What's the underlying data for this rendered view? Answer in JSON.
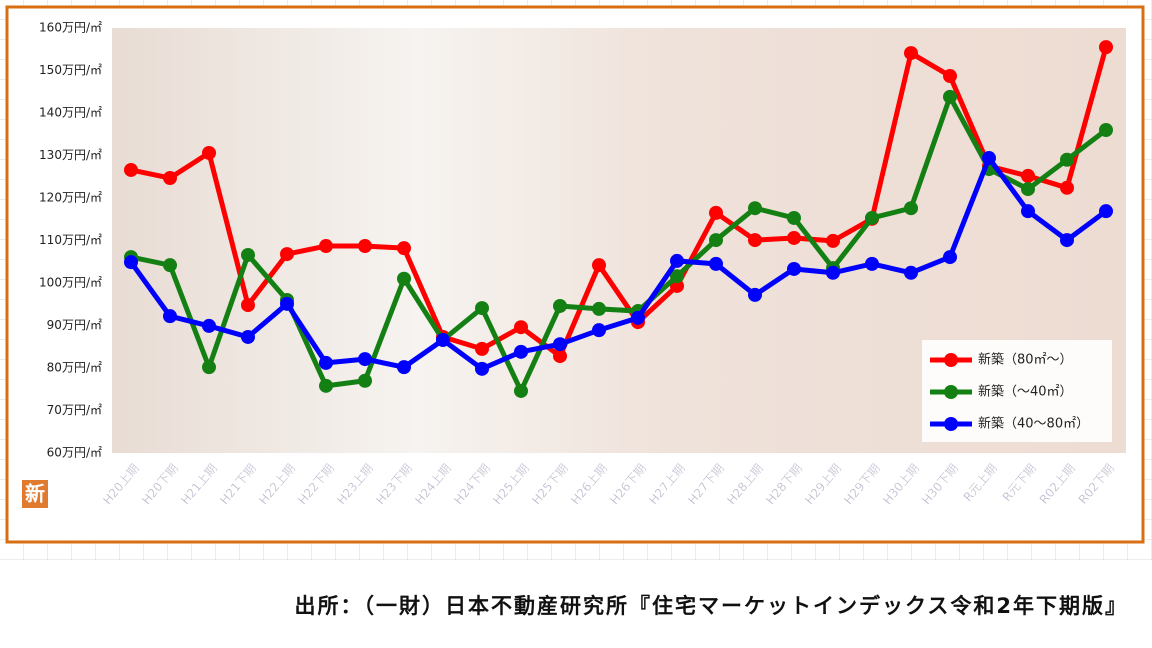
{
  "chart_data": {
    "type": "line",
    "categories": [
      "H20上期",
      "H20下期",
      "H21上期",
      "H21下期",
      "H22上期",
      "H22下期",
      "H23上期",
      "H23下期",
      "H24上期",
      "H24下期",
      "H25上期",
      "H25下期",
      "H26上期",
      "H26下期",
      "H27上期",
      "H27下期",
      "H28上期",
      "H28下期",
      "H29上期",
      "H29下期",
      "H30上期",
      "H30下期",
      "R元上期",
      "R元下期",
      "R02上期",
      "R02下期"
    ],
    "series": [
      {
        "name": "新築（80㎡～）",
        "color": "#ff0000",
        "values": [
          126.6,
          124.7,
          130.6,
          94.8,
          106.8,
          108.7,
          108.7,
          108.2,
          87.3,
          84.5,
          89.6,
          82.8,
          104.2,
          90.8,
          99.3,
          116.5,
          110.1,
          110.6,
          109.9,
          115.1,
          154.1,
          148.7,
          127.5,
          125.2,
          122.4,
          155.5
        ]
      },
      {
        "name": "新築（～40㎡）",
        "color": "#148014",
        "values": [
          106.1,
          104.2,
          80.2,
          106.6,
          96,
          75.8,
          77,
          101,
          86.6,
          94.1,
          74.6,
          94.6,
          93.9,
          93.4,
          101.6,
          110.1,
          117.6,
          115.3,
          103.5,
          115.3,
          117.6,
          143.8,
          126.8,
          122.1,
          129,
          136
        ]
      },
      {
        "name": "新築（40～80㎡）",
        "color": "#0000ff",
        "values": [
          104.9,
          92.2,
          89.9,
          87.3,
          95.1,
          81.2,
          82.1,
          80.2,
          86.6,
          79.8,
          83.8,
          85.6,
          88.9,
          91.8,
          105.2,
          104.5,
          97.2,
          103.3,
          102.4,
          104.5,
          102.4,
          106.1,
          129.4,
          116.9,
          110.1,
          116.9
        ]
      }
    ],
    "ylim": [
      60,
      160
    ],
    "yticks": [
      {
        "value": 60,
        "label": "60万円/㎡"
      },
      {
        "value": 70,
        "label": "70万円/㎡"
      },
      {
        "value": 80,
        "label": "80万円/㎡"
      },
      {
        "value": 90,
        "label": "90万円/㎡"
      },
      {
        "value": 100,
        "label": "100万円/㎡"
      },
      {
        "value": 110,
        "label": "110万円/㎡"
      },
      {
        "value": 120,
        "label": "120万円/㎡"
      },
      {
        "value": 130,
        "label": "130万円/㎡"
      },
      {
        "value": 140,
        "label": "140万円/㎡"
      },
      {
        "value": 150,
        "label": "150万円/㎡"
      },
      {
        "value": 160,
        "label": "160万円/㎡"
      }
    ],
    "grid": false,
    "legend": "lower right"
  },
  "logo": "新",
  "source": "出所：（一財）日本不動産研究所『住宅マーケットインデックス令和2年下期版』"
}
